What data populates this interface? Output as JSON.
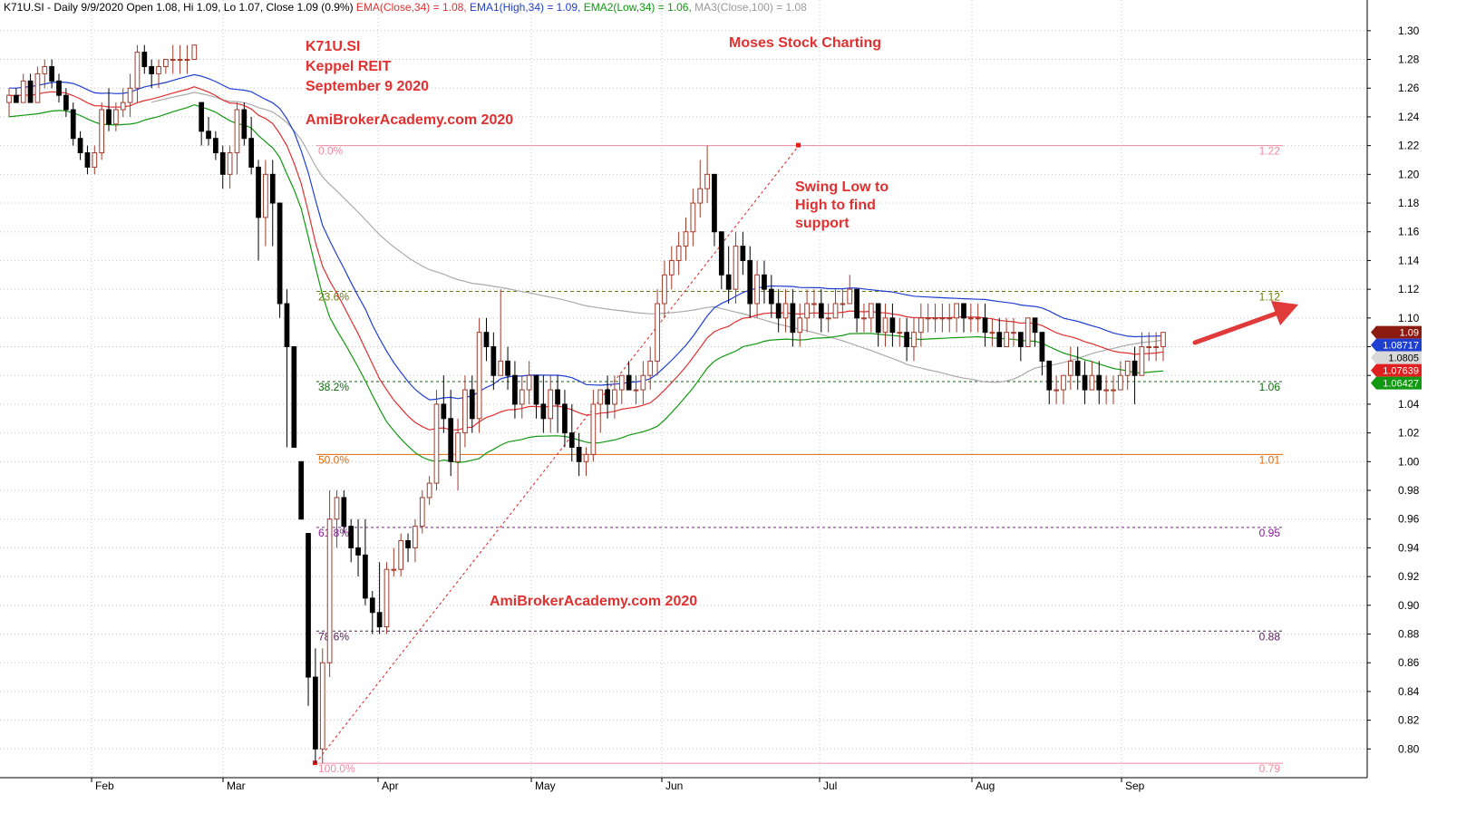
{
  "header": {
    "segments": [
      {
        "text": "K71U.SI - Daily 9/9/2020 Open 1.08, Hi 1.09, Lo 1.07, Close 1.09 (0.9%) ",
        "color": "#000000"
      },
      {
        "text": "EMA(Close,34) = 1.08, ",
        "color": "#e03030"
      },
      {
        "text": "EMA1(High,34) = 1.09, ",
        "color": "#1f3fd0"
      },
      {
        "text": "EMA2(Low,34) = 1.06, ",
        "color": "#119911"
      },
      {
        "text": "MA3(Close,100) = 1.08",
        "color": "#999999"
      }
    ]
  },
  "annotations": [
    {
      "lines": [
        "K71U.SI",
        "Keppel REIT",
        "September 9 2020"
      ],
      "anchor": "top-left-title"
    },
    {
      "lines": [
        "AmiBrokerAcademy.com  2020"
      ],
      "anchor": "upper-watermark"
    },
    {
      "lines": [
        "Moses Stock Charting"
      ],
      "anchor": "top-center"
    },
    {
      "lines": [
        "Swing Low to",
        "High to find",
        "support"
      ],
      "anchor": "swing-note"
    },
    {
      "lines": [
        "AmiBrokerAcademy.com 2020"
      ],
      "anchor": "lower-watermark"
    }
  ],
  "chart_data": {
    "type": "candlestick",
    "symbol": "K71U.SI",
    "ylim": [
      0.78,
      1.31
    ],
    "y_ticks": [
      "1.30",
      "1.28",
      "1.26",
      "1.24",
      "1.22",
      "1.20",
      "1.18",
      "1.16",
      "1.14",
      "1.12",
      "1.10",
      "1.08",
      "1.06",
      "1.04",
      "1.02",
      "1.00",
      "0.98",
      "0.96",
      "0.94",
      "0.92",
      "0.90",
      "0.88",
      "0.86",
      "0.84",
      "0.82",
      "0.80"
    ],
    "x_ticks": [
      {
        "label": "Feb",
        "date": "2020-02-03"
      },
      {
        "label": "Mar",
        "date": "2020-03-02"
      },
      {
        "label": "Apr",
        "date": "2020-04-01"
      },
      {
        "label": "May",
        "date": "2020-05-04"
      },
      {
        "label": "Jun",
        "date": "2020-06-01"
      },
      {
        "label": "Jul",
        "date": "2020-07-01"
      },
      {
        "label": "Aug",
        "date": "2020-08-03"
      },
      {
        "label": "Sep",
        "date": "2020-09-01"
      }
    ],
    "grid": true,
    "candles_ohlc": [
      [
        1.25,
        1.26,
        1.24,
        1.255
      ],
      [
        1.255,
        1.26,
        1.25,
        1.25
      ],
      [
        1.25,
        1.27,
        1.25,
        1.265
      ],
      [
        1.265,
        1.27,
        1.25,
        1.25
      ],
      [
        1.25,
        1.275,
        1.25,
        1.27
      ],
      [
        1.27,
        1.28,
        1.26,
        1.275
      ],
      [
        1.275,
        1.28,
        1.26,
        1.265
      ],
      [
        1.265,
        1.27,
        1.25,
        1.255
      ],
      [
        1.255,
        1.26,
        1.24,
        1.245
      ],
      [
        1.245,
        1.25,
        1.22,
        1.225
      ],
      [
        1.225,
        1.23,
        1.21,
        1.215
      ],
      [
        1.215,
        1.22,
        1.2,
        1.205
      ],
      [
        1.205,
        1.22,
        1.2,
        1.215
      ],
      [
        1.215,
        1.25,
        1.21,
        1.245
      ],
      [
        1.245,
        1.26,
        1.23,
        1.235
      ],
      [
        1.235,
        1.25,
        1.23,
        1.245
      ],
      [
        1.245,
        1.26,
        1.24,
        1.25
      ],
      [
        1.25,
        1.27,
        1.24,
        1.26
      ],
      [
        1.26,
        1.29,
        1.25,
        1.285
      ],
      [
        1.285,
        1.29,
        1.27,
        1.275
      ],
      [
        1.275,
        1.28,
        1.26,
        1.27
      ],
      [
        1.27,
        1.28,
        1.26,
        1.275
      ],
      [
        1.275,
        1.28,
        1.27,
        1.28
      ],
      [
        1.28,
        1.29,
        1.27,
        1.28
      ],
      [
        1.28,
        1.29,
        1.27,
        1.28
      ],
      [
        1.28,
        1.29,
        1.27,
        1.28
      ],
      [
        1.28,
        1.29,
        1.28,
        1.29
      ],
      [
        1.25,
        1.25,
        1.22,
        1.23
      ],
      [
        1.23,
        1.24,
        1.22,
        1.225
      ],
      [
        1.225,
        1.23,
        1.21,
        1.215
      ],
      [
        1.215,
        1.22,
        1.19,
        1.2
      ],
      [
        1.2,
        1.22,
        1.19,
        1.215
      ],
      [
        1.215,
        1.25,
        1.2,
        1.245
      ],
      [
        1.245,
        1.25,
        1.22,
        1.225
      ],
      [
        1.225,
        1.24,
        1.2,
        1.205
      ],
      [
        1.205,
        1.21,
        1.14,
        1.17
      ],
      [
        1.17,
        1.21,
        1.15,
        1.2
      ],
      [
        1.2,
        1.21,
        1.15,
        1.18
      ],
      [
        1.18,
        1.18,
        1.1,
        1.11
      ],
      [
        1.11,
        1.12,
        1.01,
        1.08
      ],
      [
        1.08,
        1.08,
        1.01,
        1.01
      ],
      [
        1.0,
        1.0,
        0.96,
        0.96
      ],
      [
        0.95,
        0.95,
        0.83,
        0.85
      ],
      [
        0.85,
        0.87,
        0.79,
        0.8
      ],
      [
        0.8,
        0.87,
        0.79,
        0.86
      ],
      [
        0.86,
        0.98,
        0.85,
        0.96
      ],
      [
        0.96,
        0.98,
        0.94,
        0.975
      ],
      [
        0.975,
        0.98,
        0.95,
        0.955
      ],
      [
        0.955,
        0.96,
        0.93,
        0.94
      ],
      [
        0.94,
        0.96,
        0.92,
        0.935
      ],
      [
        0.935,
        0.96,
        0.9,
        0.905
      ],
      [
        0.905,
        0.91,
        0.88,
        0.895
      ],
      [
        0.895,
        0.93,
        0.88,
        0.885
      ],
      [
        0.885,
        0.93,
        0.88,
        0.925
      ],
      [
        0.925,
        0.94,
        0.92,
        0.925
      ],
      [
        0.925,
        0.95,
        0.92,
        0.945
      ],
      [
        0.945,
        0.95,
        0.93,
        0.94
      ],
      [
        0.94,
        0.96,
        0.93,
        0.955
      ],
      [
        0.955,
        0.98,
        0.95,
        0.975
      ],
      [
        0.975,
        0.99,
        0.97,
        0.985
      ],
      [
        0.985,
        1.05,
        0.98,
        1.04
      ],
      [
        1.04,
        1.06,
        1.02,
        1.03
      ],
      [
        1.03,
        1.05,
        0.99,
        1.0
      ],
      [
        1.0,
        1.03,
        0.98,
        1.02
      ],
      [
        1.02,
        1.06,
        1.01,
        1.05
      ],
      [
        1.05,
        1.06,
        1.02,
        1.03
      ],
      [
        1.03,
        1.1,
        1.02,
        1.09
      ],
      [
        1.09,
        1.1,
        1.07,
        1.08
      ],
      [
        1.08,
        1.09,
        1.05,
        1.06
      ],
      [
        1.06,
        1.12,
        1.06,
        1.07
      ],
      [
        1.07,
        1.08,
        1.05,
        1.06
      ],
      [
        1.06,
        1.07,
        1.03,
        1.04
      ],
      [
        1.04,
        1.06,
        1.03,
        1.05
      ],
      [
        1.05,
        1.07,
        1.04,
        1.06
      ],
      [
        1.06,
        1.06,
        1.03,
        1.04
      ],
      [
        1.04,
        1.06,
        1.02,
        1.03
      ],
      [
        1.03,
        1.06,
        1.02,
        1.05
      ],
      [
        1.05,
        1.06,
        1.02,
        1.04
      ],
      [
        1.04,
        1.05,
        1.01,
        1.02
      ],
      [
        1.02,
        1.04,
        1.0,
        1.01
      ],
      [
        1.01,
        1.02,
        0.99,
        1.0
      ],
      [
        1.0,
        1.01,
        0.99,
        1.005
      ],
      [
        1.005,
        1.05,
        1.0,
        1.04
      ],
      [
        1.04,
        1.05,
        1.02,
        1.05
      ],
      [
        1.05,
        1.06,
        1.03,
        1.04
      ],
      [
        1.04,
        1.06,
        1.03,
        1.05
      ],
      [
        1.05,
        1.06,
        1.04,
        1.06
      ],
      [
        1.06,
        1.07,
        1.05,
        1.05
      ],
      [
        1.05,
        1.06,
        1.04,
        1.05
      ],
      [
        1.05,
        1.07,
        1.04,
        1.06
      ],
      [
        1.06,
        1.08,
        1.05,
        1.07
      ],
      [
        1.07,
        1.12,
        1.06,
        1.11
      ],
      [
        1.11,
        1.14,
        1.1,
        1.13
      ],
      [
        1.13,
        1.15,
        1.12,
        1.14
      ],
      [
        1.14,
        1.16,
        1.13,
        1.15
      ],
      [
        1.15,
        1.17,
        1.14,
        1.16
      ],
      [
        1.16,
        1.19,
        1.15,
        1.18
      ],
      [
        1.18,
        1.21,
        1.17,
        1.19
      ],
      [
        1.19,
        1.22,
        1.18,
        1.2
      ],
      [
        1.2,
        1.2,
        1.15,
        1.16
      ],
      [
        1.16,
        1.16,
        1.12,
        1.13
      ],
      [
        1.13,
        1.15,
        1.11,
        1.12
      ],
      [
        1.12,
        1.16,
        1.11,
        1.15
      ],
      [
        1.15,
        1.16,
        1.13,
        1.14
      ],
      [
        1.14,
        1.15,
        1.1,
        1.11
      ],
      [
        1.11,
        1.14,
        1.1,
        1.13
      ],
      [
        1.13,
        1.14,
        1.11,
        1.12
      ],
      [
        1.12,
        1.13,
        1.1,
        1.11
      ],
      [
        1.11,
        1.12,
        1.09,
        1.1
      ],
      [
        1.1,
        1.12,
        1.09,
        1.11
      ],
      [
        1.11,
        1.12,
        1.08,
        1.09
      ],
      [
        1.09,
        1.11,
        1.08,
        1.1
      ],
      [
        1.1,
        1.12,
        1.09,
        1.11
      ],
      [
        1.11,
        1.12,
        1.1,
        1.11
      ],
      [
        1.11,
        1.12,
        1.09,
        1.1
      ],
      [
        1.1,
        1.11,
        1.09,
        1.1
      ],
      [
        1.1,
        1.12,
        1.1,
        1.11
      ],
      [
        1.11,
        1.12,
        1.1,
        1.11
      ],
      [
        1.11,
        1.13,
        1.11,
        1.12
      ],
      [
        1.12,
        1.12,
        1.09,
        1.1
      ],
      [
        1.1,
        1.11,
        1.09,
        1.1
      ],
      [
        1.1,
        1.11,
        1.09,
        1.11
      ],
      [
        1.11,
        1.11,
        1.08,
        1.09
      ],
      [
        1.09,
        1.11,
        1.08,
        1.1
      ],
      [
        1.1,
        1.11,
        1.08,
        1.09
      ],
      [
        1.09,
        1.1,
        1.08,
        1.09
      ],
      [
        1.09,
        1.1,
        1.07,
        1.08
      ],
      [
        1.08,
        1.1,
        1.07,
        1.09
      ],
      [
        1.09,
        1.11,
        1.08,
        1.1
      ],
      [
        1.1,
        1.11,
        1.09,
        1.1
      ],
      [
        1.1,
        1.11,
        1.09,
        1.1
      ],
      [
        1.1,
        1.11,
        1.09,
        1.1
      ],
      [
        1.1,
        1.11,
        1.09,
        1.1
      ],
      [
        1.1,
        1.11,
        1.09,
        1.11
      ],
      [
        1.11,
        1.11,
        1.09,
        1.1
      ],
      [
        1.1,
        1.11,
        1.09,
        1.1
      ],
      [
        1.1,
        1.11,
        1.09,
        1.1
      ],
      [
        1.1,
        1.11,
        1.08,
        1.09
      ],
      [
        1.09,
        1.1,
        1.08,
        1.09
      ],
      [
        1.09,
        1.1,
        1.08,
        1.08
      ],
      [
        1.08,
        1.1,
        1.08,
        1.09
      ],
      [
        1.09,
        1.1,
        1.08,
        1.09
      ],
      [
        1.09,
        1.09,
        1.07,
        1.08
      ],
      [
        1.08,
        1.1,
        1.08,
        1.1
      ],
      [
        1.1,
        1.1,
        1.08,
        1.09
      ],
      [
        1.09,
        1.09,
        1.06,
        1.07
      ],
      [
        1.07,
        1.07,
        1.04,
        1.05
      ],
      [
        1.05,
        1.06,
        1.04,
        1.05
      ],
      [
        1.05,
        1.06,
        1.04,
        1.06
      ],
      [
        1.06,
        1.08,
        1.05,
        1.07
      ],
      [
        1.07,
        1.08,
        1.05,
        1.06
      ],
      [
        1.06,
        1.07,
        1.04,
        1.05
      ],
      [
        1.05,
        1.07,
        1.05,
        1.06
      ],
      [
        1.06,
        1.07,
        1.04,
        1.05
      ],
      [
        1.05,
        1.06,
        1.04,
        1.05
      ],
      [
        1.05,
        1.06,
        1.04,
        1.05
      ],
      [
        1.05,
        1.07,
        1.05,
        1.06
      ],
      [
        1.06,
        1.07,
        1.05,
        1.07
      ],
      [
        1.07,
        1.08,
        1.04,
        1.06
      ],
      [
        1.06,
        1.09,
        1.06,
        1.08
      ],
      [
        1.08,
        1.09,
        1.07,
        1.08
      ],
      [
        1.08,
        1.09,
        1.07,
        1.08
      ],
      [
        1.08,
        1.09,
        1.07,
        1.09
      ]
    ],
    "fibonacci": {
      "swing_low": 0.79,
      "swing_high": 1.22,
      "levels": [
        {
          "pct": "0.0%",
          "price": "1.22",
          "color": "#f08aa0"
        },
        {
          "pct": "23.6%",
          "price": "1.12",
          "color": "#6b7a10"
        },
        {
          "pct": "38.2%",
          "price": "1.06",
          "color": "#0a6a0a"
        },
        {
          "pct": "50.0%",
          "price": "1.01",
          "color": "#e06a10"
        },
        {
          "pct": "61.8%",
          "price": "0.95",
          "color": "#8a1a9a"
        },
        {
          "pct": "78.6%",
          "price": "0.88",
          "color": "#5a1a5a"
        },
        {
          "pct": "100.0%",
          "price": "0.79",
          "color": "#f08aa0"
        }
      ]
    },
    "indicators": [
      {
        "name": "EMA(Close,34)",
        "color": "#e03030",
        "last": "1.07639"
      },
      {
        "name": "EMA1(High,34)",
        "color": "#1f3fd0",
        "last": "1.08717"
      },
      {
        "name": "EMA2(Low,34)",
        "color": "#119911",
        "last": "1.06427"
      },
      {
        "name": "MA3(Close,100)",
        "color": "#aaaaaa",
        "last": "1.0805"
      }
    ],
    "last_close": "1.09"
  }
}
